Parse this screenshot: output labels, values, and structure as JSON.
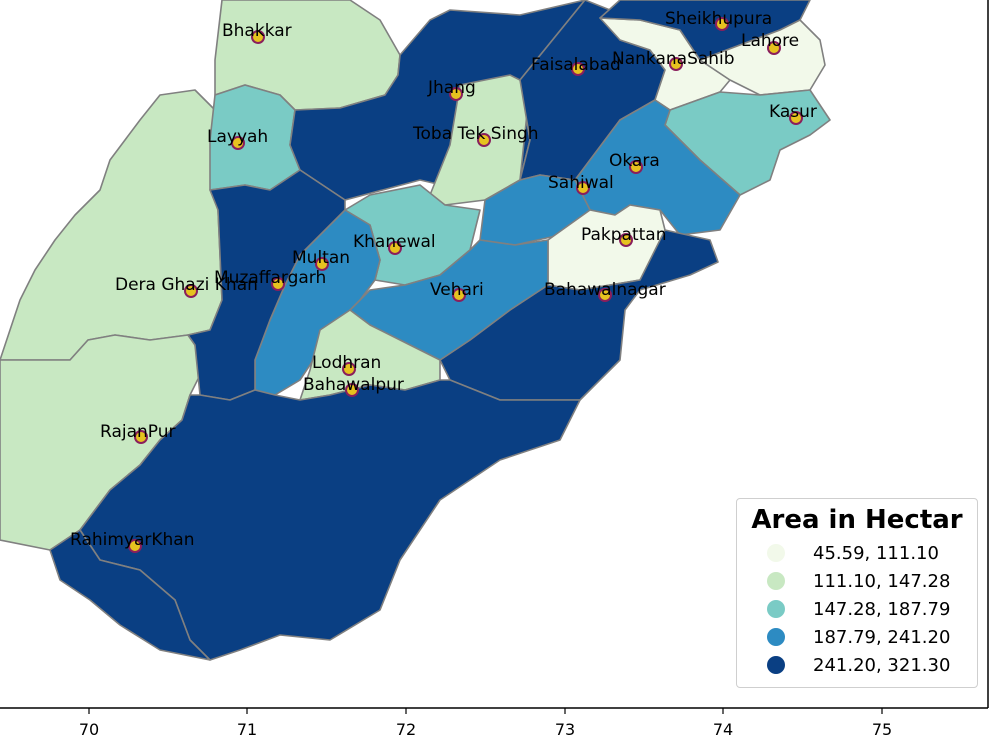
{
  "map": {
    "legend": {
      "title": "Area in Hectar",
      "items": [
        {
          "label": "45.59, 111.10",
          "color": "#f2f9ea"
        },
        {
          "label": "111.10, 147.28",
          "color": "#c8e8c2"
        },
        {
          "label": "147.28, 187.79",
          "color": "#7acbc5"
        },
        {
          "label": "187.79, 241.20",
          "color": "#2d8bc2"
        },
        {
          "label": "241.20, 321.30",
          "color": "#0a3f83"
        }
      ]
    },
    "x_axis": {
      "tick_labels": [
        "70",
        "71",
        "72",
        "73",
        "74",
        "75"
      ]
    },
    "districts": [
      {
        "name": "Bhakkar"
      },
      {
        "name": "Layyah"
      },
      {
        "name": "Jhang"
      },
      {
        "name": "Toba Tek Singh"
      },
      {
        "name": "Faisalabad"
      },
      {
        "name": "NankanaSahib"
      },
      {
        "name": "Sheikhupura"
      },
      {
        "name": "Lahore"
      },
      {
        "name": "Kasur"
      },
      {
        "name": "Okara"
      },
      {
        "name": "Sahiwal"
      },
      {
        "name": "Pakpattan"
      },
      {
        "name": "Khanewal"
      },
      {
        "name": "Multan"
      },
      {
        "name": "Muzaffargarh"
      },
      {
        "name": "Dera Ghazi Khan"
      },
      {
        "name": "Vehari"
      },
      {
        "name": "Bahawalnagar"
      },
      {
        "name": "Lodhran"
      },
      {
        "name": "Bahawalpur"
      },
      {
        "name": "RajanPur"
      },
      {
        "name": "RahimyarKhan"
      }
    ]
  }
}
